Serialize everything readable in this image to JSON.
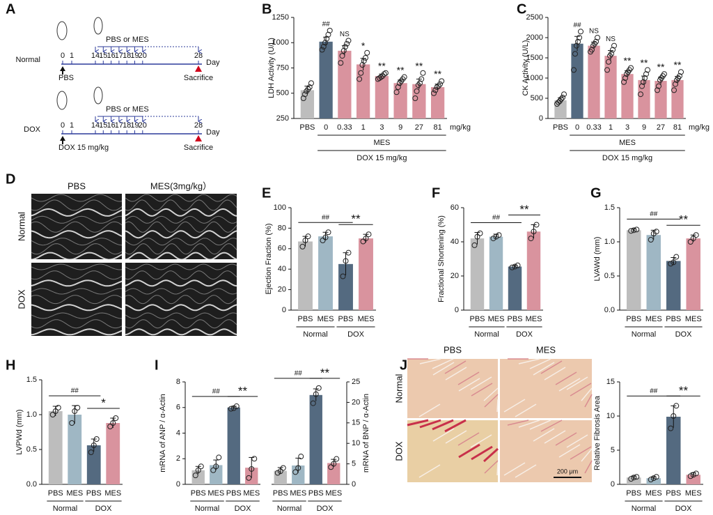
{
  "timeline": {
    "panel": "A",
    "treatment": "PBS or MES",
    "unit": "Day",
    "days": [
      0,
      1,
      14,
      15,
      16,
      17,
      18,
      19,
      20,
      28
    ],
    "end": "Sacrifice",
    "rows": [
      {
        "label": "Normal",
        "injection": "PBS"
      },
      {
        "label": "DOX",
        "injection": "DOX 15 mg/kg"
      }
    ]
  },
  "echo": {
    "panel": "D",
    "columns": [
      "PBS",
      "MES(3mg/kg）"
    ],
    "rows": [
      "Normal",
      "DOX"
    ]
  },
  "histology": {
    "columns": [
      "PBS",
      "MES"
    ],
    "rows": [
      "Normal",
      "DOX"
    ],
    "scale_bar": "200 μm"
  },
  "chart_data": [
    {
      "type": "bar",
      "panel": "B",
      "ylabel": "LDH Activity (U/L)",
      "ylim": [
        250,
        1250
      ],
      "yticks": [
        250,
        500,
        750,
        1000,
        1250
      ],
      "categories": [
        "PBS",
        "0",
        "0.33",
        "1",
        "3",
        "9",
        "27",
        "81"
      ],
      "x_unit": "mg/kg",
      "values": [
        530,
        1010,
        920,
        785,
        670,
        600,
        590,
        560
      ],
      "errors": [
        40,
        45,
        50,
        60,
        20,
        30,
        50,
        30
      ],
      "points": [
        [
          450,
          490,
          520,
          540,
          560,
          600
        ],
        [
          930,
          960,
          1000,
          1040,
          1080,
          1120
        ],
        [
          800,
          870,
          920,
          960,
          990,
          1020
        ],
        [
          640,
          700,
          780,
          820,
          850,
          900
        ],
        [
          640,
          650,
          660,
          670,
          690,
          700
        ],
        [
          510,
          560,
          600,
          620,
          640,
          660
        ],
        [
          450,
          520,
          580,
          600,
          640,
          700
        ],
        [
          500,
          530,
          560,
          570,
          590,
          620
        ]
      ],
      "significance": [
        null,
        "##",
        "NS",
        "*",
        "**",
        "**",
        "**",
        "**"
      ],
      "colors": [
        "#bdbdbd",
        "#546a80",
        "#d9939e",
        "#d9939e",
        "#d9939e",
        "#d9939e",
        "#d9939e",
        "#d9939e"
      ],
      "groups": [
        {
          "label": "MES",
          "from": 1,
          "to": 7,
          "level": 1
        },
        {
          "label": "DOX 15 mg/kg",
          "from": 1,
          "to": 7,
          "level": 2
        }
      ]
    },
    {
      "type": "bar",
      "panel": "C",
      "ylabel": "CK Activity (U/L)",
      "ylim": [
        0,
        2500
      ],
      "yticks": [
        0,
        500,
        1000,
        1500,
        2000,
        2500
      ],
      "categories": [
        "PBS",
        "0",
        "0.33",
        "1",
        "3",
        "9",
        "27",
        "81"
      ],
      "x_unit": "mg/kg",
      "values": [
        450,
        1850,
        1800,
        1550,
        1100,
        950,
        930,
        950
      ],
      "errors": [
        60,
        180,
        90,
        130,
        80,
        100,
        90,
        90
      ],
      "points": [
        [
          360,
          400,
          430,
          480,
          520,
          600
        ],
        [
          1200,
          1600,
          1800,
          1900,
          2000,
          2150
        ],
        [
          1650,
          1700,
          1800,
          1850,
          1900,
          2000
        ],
        [
          1200,
          1400,
          1550,
          1600,
          1700,
          1800
        ],
        [
          900,
          1000,
          1100,
          1150,
          1200,
          1250
        ],
        [
          600,
          800,
          900,
          1000,
          1100,
          1200
        ],
        [
          700,
          800,
          950,
          1000,
          1050,
          1100
        ],
        [
          700,
          850,
          950,
          1000,
          1050,
          1150
        ]
      ],
      "significance": [
        null,
        "##",
        "NS",
        "NS",
        "**",
        "**",
        "**",
        "**"
      ],
      "colors": [
        "#bdbdbd",
        "#546a80",
        "#d9939e",
        "#d9939e",
        "#d9939e",
        "#d9939e",
        "#d9939e",
        "#d9939e"
      ],
      "groups": [
        {
          "label": "MES",
          "from": 1,
          "to": 7,
          "level": 1
        },
        {
          "label": "DOX 15 mg/kg",
          "from": 1,
          "to": 7,
          "level": 2
        }
      ]
    },
    {
      "type": "bar",
      "panel": "E",
      "ylabel": "Ejection Fraction (%)",
      "ylim": [
        0,
        100
      ],
      "yticks": [
        0,
        20,
        40,
        60,
        80,
        100
      ],
      "categories": [
        "PBS",
        "MES",
        "PBS",
        "MES"
      ],
      "values": [
        67,
        72,
        45,
        70
      ],
      "errors": [
        5,
        4,
        11,
        4
      ],
      "points": [
        [
          62,
          68,
          72
        ],
        [
          68,
          71,
          76
        ],
        [
          33,
          48,
          56
        ],
        [
          67,
          70,
          74
        ]
      ],
      "colors": [
        "#bdbdbd",
        "#9fb7c4",
        "#546a80",
        "#d9939e"
      ],
      "groups": [
        {
          "label": "Normal",
          "from": 0,
          "to": 1,
          "level": 1
        },
        {
          "label": "DOX",
          "from": 2,
          "to": 3,
          "level": 1
        }
      ],
      "brackets": [
        {
          "label": "##",
          "from": 0,
          "to": 2
        },
        {
          "label": "**",
          "from": 2,
          "to": 3
        }
      ]
    },
    {
      "type": "bar",
      "panel": "F",
      "ylabel": "Fractional Shortening (%)",
      "ylim": [
        0,
        60
      ],
      "yticks": [
        0,
        20,
        40,
        60
      ],
      "categories": [
        "PBS",
        "MES",
        "PBS",
        "MES"
      ],
      "values": [
        42,
        43,
        25.5,
        46
      ],
      "errors": [
        3.5,
        1.5,
        0.8,
        4
      ],
      "points": [
        [
          38,
          43,
          45
        ],
        [
          42,
          43,
          44
        ],
        [
          25,
          25.5,
          26.2
        ],
        [
          42,
          46,
          50
        ]
      ],
      "colors": [
        "#bdbdbd",
        "#9fb7c4",
        "#546a80",
        "#d9939e"
      ],
      "groups": [
        {
          "label": "Normal",
          "from": 0,
          "to": 1,
          "level": 1
        },
        {
          "label": "DOX",
          "from": 2,
          "to": 3,
          "level": 1
        }
      ],
      "brackets": [
        {
          "label": "##",
          "from": 0,
          "to": 2
        },
        {
          "label": "**",
          "from": 2,
          "to": 3
        }
      ]
    },
    {
      "type": "bar",
      "panel": "G",
      "ylabel": "LVAWd (mm)",
      "ylim": [
        0,
        1.5
      ],
      "yticks": [
        {
          "value": 0,
          "label": "0.0"
        },
        0.5,
        {
          "value": 1,
          "label": "1.0"
        },
        1.5
      ],
      "categories": [
        "PBS",
        "MES",
        "PBS",
        "MES"
      ],
      "values": [
        1.17,
        1.1,
        0.72,
        1.05
      ],
      "errors": [
        0.02,
        0.07,
        0.05,
        0.05
      ],
      "points": [
        [
          1.16,
          1.17,
          1.18
        ],
        [
          1.03,
          1.12,
          1.15
        ],
        [
          0.68,
          0.7,
          0.78
        ],
        [
          1.0,
          1.05,
          1.1
        ]
      ],
      "colors": [
        "#bdbdbd",
        "#9fb7c4",
        "#546a80",
        "#d9939e"
      ],
      "groups": [
        {
          "label": "Normal",
          "from": 0,
          "to": 1,
          "level": 1
        },
        {
          "label": "DOX",
          "from": 2,
          "to": 3,
          "level": 1
        }
      ],
      "brackets": [
        {
          "label": "##",
          "from": 0,
          "to": 2
        },
        {
          "label": "**",
          "from": 2,
          "to": 3
        }
      ]
    },
    {
      "type": "bar",
      "panel": "H",
      "ylabel": "LVPWd (mm)",
      "ylim": [
        0,
        1.5
      ],
      "yticks": [
        {
          "value": 0,
          "label": "0.0"
        },
        0.5,
        {
          "value": 1,
          "label": "1.0"
        },
        1.5
      ],
      "categories": [
        "PBS",
        "MES",
        "PBS",
        "MES"
      ],
      "values": [
        1.05,
        1.0,
        0.56,
        0.88
      ],
      "errors": [
        0.07,
        0.13,
        0.09,
        0.07
      ],
      "points": [
        [
          1.0,
          1.05,
          1.1
        ],
        [
          0.88,
          1.05,
          1.1
        ],
        [
          0.46,
          0.56,
          0.65
        ],
        [
          0.83,
          0.88,
          0.95
        ]
      ],
      "colors": [
        "#bdbdbd",
        "#9fb7c4",
        "#546a80",
        "#d9939e"
      ],
      "groups": [
        {
          "label": "Normal",
          "from": 0,
          "to": 1,
          "level": 1
        },
        {
          "label": "DOX",
          "from": 2,
          "to": 3,
          "level": 1
        }
      ],
      "brackets": [
        {
          "label": "##",
          "from": 0,
          "to": 2
        },
        {
          "label": "*",
          "from": 2,
          "to": 3
        }
      ]
    },
    {
      "type": "bar",
      "panel": "I",
      "ylabel": "mRNA of ANP / α-Actin",
      "ylim": [
        0,
        8
      ],
      "yticks": [
        0,
        2,
        4,
        6,
        8
      ],
      "categories": [
        "PBS",
        "MES",
        "PBS",
        "MES"
      ],
      "values": [
        1.1,
        1.5,
        6.0,
        1.3
      ],
      "errors": [
        0.3,
        0.4,
        0.1,
        0.8
      ],
      "points": [
        [
          0.7,
          1.1,
          1.4
        ],
        [
          1.1,
          1.4,
          2.1
        ],
        [
          5.9,
          5.95,
          6.1
        ],
        [
          0.5,
          1.2,
          2.0
        ]
      ],
      "colors": [
        "#bdbdbd",
        "#9fb7c4",
        "#546a80",
        "#d9939e"
      ],
      "groups": [
        {
          "label": "Normal",
          "from": 0,
          "to": 1,
          "level": 1
        },
        {
          "label": "DOX",
          "from": 2,
          "to": 3,
          "level": 1
        }
      ],
      "brackets": [
        {
          "label": "##",
          "from": 0,
          "to": 2
        },
        {
          "label": "**",
          "from": 2,
          "to": 3
        }
      ]
    },
    {
      "type": "bar",
      "yaxis": "right",
      "ylabel": "mRNA of BNP / α-Actin",
      "ylim": [
        0,
        25
      ],
      "yticks": [
        0,
        5,
        10,
        15,
        20,
        25
      ],
      "categories": [
        "PBS",
        "MES",
        "PBS",
        "MES"
      ],
      "values": [
        3.3,
        4.6,
        21.8,
        5.2
      ],
      "errors": [
        0.8,
        1.8,
        1.5,
        0.9
      ],
      "points": [
        [
          2.8,
          3.2,
          4
        ],
        [
          3,
          4,
          6.8
        ],
        [
          19.8,
          22,
          23.5
        ],
        [
          4.2,
          5,
          6.2
        ]
      ],
      "colors": [
        "#bdbdbd",
        "#9fb7c4",
        "#546a80",
        "#d9939e"
      ],
      "groups": [
        {
          "label": "Normal",
          "from": 0,
          "to": 1,
          "level": 1
        },
        {
          "label": "DOX",
          "from": 2,
          "to": 3,
          "level": 1
        }
      ],
      "brackets": [
        {
          "label": "##",
          "from": 0,
          "to": 2
        },
        {
          "label": "**",
          "from": 2,
          "to": 3
        }
      ]
    },
    {
      "type": "bar",
      "panel": "J",
      "ylabel": "Relative Fibrosis Area",
      "ylim": [
        0,
        15
      ],
      "yticks": [
        0,
        5,
        10,
        15
      ],
      "categories": [
        "PBS",
        "MES",
        "PBS",
        "MES"
      ],
      "values": [
        1.0,
        0.9,
        9.9,
        1.4
      ],
      "errors": [
        0.2,
        0.2,
        1.6,
        0.3
      ],
      "points": [
        [
          0.8,
          1.0,
          1.1
        ],
        [
          0.7,
          0.9,
          1.1
        ],
        [
          8.2,
          10,
          11.5
        ],
        [
          1.2,
          1.4,
          1.6
        ]
      ],
      "colors": [
        "#bdbdbd",
        "#9fb7c4",
        "#546a80",
        "#d9939e"
      ],
      "groups": [
        {
          "label": "Normal",
          "from": 0,
          "to": 1,
          "level": 1
        },
        {
          "label": "DOX",
          "from": 2,
          "to": 3,
          "level": 1
        }
      ],
      "brackets": [
        {
          "label": "##",
          "from": 0,
          "to": 2
        },
        {
          "label": "**",
          "from": 2,
          "to": 3
        }
      ]
    }
  ]
}
